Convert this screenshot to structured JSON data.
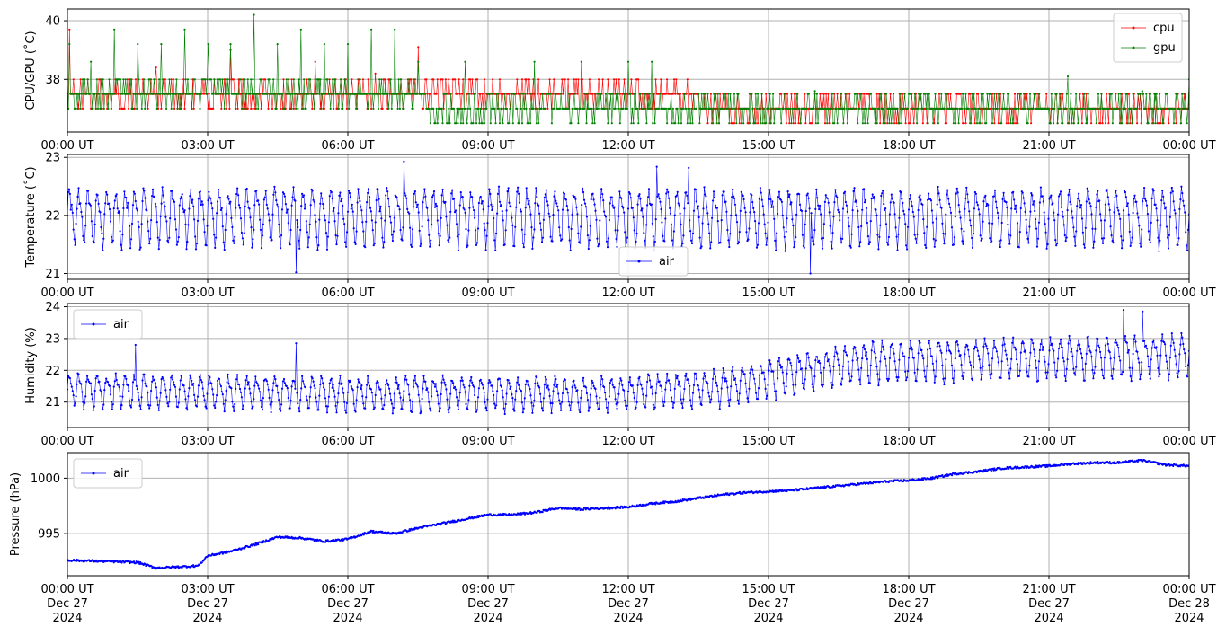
{
  "chart_data": [
    {
      "type": "line",
      "ylabel": "CPU/GPU (˚C)",
      "ylim": [
        36.2,
        40.4
      ],
      "yticks": [
        38,
        40
      ],
      "xlim_hours": [
        0,
        24
      ],
      "xtick_labels": [
        "00:00 UT",
        "03:00 UT",
        "06:00 UT",
        "09:00 UT",
        "12:00 UT",
        "15:00 UT",
        "18:00 UT",
        "21:00 UT",
        "00:00 UT"
      ],
      "grid": true,
      "legend": "top-right",
      "series": [
        {
          "name": "cpu",
          "color": "#ff0000",
          "levels": [
            36.5,
            37.0,
            37.5,
            38.0
          ],
          "segments": [
            {
              "from": 0,
              "to": 8,
              "base": 37.5
            },
            {
              "from": 8,
              "to": 13.5,
              "base": 37.5
            },
            {
              "from": 13.5,
              "to": 24,
              "base": 37.0
            }
          ],
          "spikes": [
            [
              0.05,
              39.7
            ],
            [
              1.9,
              38.4
            ],
            [
              3.5,
              39.0
            ],
            [
              5.3,
              38.6
            ],
            [
              6.6,
              38.2
            ],
            [
              7.5,
              39.1
            ]
          ]
        },
        {
          "name": "gpu",
          "color": "#008000",
          "levels": [
            36.5,
            37.0,
            37.5,
            38.0
          ],
          "segments": [
            {
              "from": 0,
              "to": 7.7,
              "base": 37.5
            },
            {
              "from": 7.7,
              "to": 24,
              "base": 37.0
            }
          ],
          "spikes": [
            [
              0.05,
              39.2
            ],
            [
              0.5,
              38.6
            ],
            [
              1.0,
              39.7
            ],
            [
              1.5,
              39.2
            ],
            [
              2.0,
              39.2
            ],
            [
              2.5,
              39.7
            ],
            [
              3.0,
              39.2
            ],
            [
              3.5,
              39.2
            ],
            [
              4.0,
              40.2
            ],
            [
              4.5,
              39.2
            ],
            [
              5.0,
              39.7
            ],
            [
              5.5,
              39.2
            ],
            [
              6.0,
              39.2
            ],
            [
              6.5,
              39.7
            ],
            [
              7.0,
              39.7
            ],
            [
              7.5,
              38.6
            ],
            [
              8.5,
              38.6
            ],
            [
              10.0,
              38.6
            ],
            [
              11.0,
              38.6
            ],
            [
              12.0,
              38.6
            ],
            [
              12.5,
              38.6
            ],
            [
              16.0,
              37.6
            ],
            [
              21.4,
              38.1
            ],
            [
              23.0,
              37.6
            ]
          ]
        }
      ]
    },
    {
      "type": "line",
      "ylabel": "Temperature (˚C)",
      "ylim": [
        20.9,
        23.05
      ],
      "yticks": [
        21,
        22,
        23
      ],
      "xlim_hours": [
        0,
        24
      ],
      "xtick_labels": [
        "00:00 UT",
        "03:00 UT",
        "06:00 UT",
        "09:00 UT",
        "12:00 UT",
        "15:00 UT",
        "18:00 UT",
        "21:00 UT",
        "00:00 UT"
      ],
      "grid": true,
      "legend": "bottom-center",
      "series": [
        {
          "name": "air",
          "color": "#0000ff",
          "mean": 22.0,
          "amplitude": 0.55,
          "period_hours": 0.2,
          "extremes": [
            [
              4.9,
              21.02
            ],
            [
              7.2,
              22.93
            ],
            [
              12.6,
              22.84
            ],
            [
              15.9,
              21.0
            ],
            [
              13.3,
              22.82
            ]
          ]
        }
      ]
    },
    {
      "type": "line",
      "ylabel": "Humidity (%)",
      "ylim": [
        20.2,
        24.1
      ],
      "yticks": [
        21,
        22,
        23,
        24
      ],
      "xlim_hours": [
        0,
        24
      ],
      "xtick_labels": [
        "00:00 UT",
        "03:00 UT",
        "06:00 UT",
        "09:00 UT",
        "12:00 UT",
        "15:00 UT",
        "18:00 UT",
        "21:00 UT",
        "00:00 UT"
      ],
      "grid": true,
      "legend": "top-left",
      "series": [
        {
          "name": "air",
          "color": "#0000ff",
          "mean_points": [
            [
              0,
              21.4
            ],
            [
              6,
              21.3
            ],
            [
              12,
              21.3
            ],
            [
              14,
              21.5
            ],
            [
              17,
              22.3
            ],
            [
              24,
              22.5
            ]
          ],
          "amplitude_points": [
            [
              0,
              0.6
            ],
            [
              13,
              0.6
            ],
            [
              16,
              0.7
            ],
            [
              24,
              0.75
            ]
          ],
          "period_hours": 0.2,
          "extremes": [
            [
              1.45,
              22.8
            ],
            [
              4.9,
              22.85
            ],
            [
              22.6,
              23.9
            ],
            [
              23.0,
              23.85
            ]
          ]
        }
      ]
    },
    {
      "type": "line",
      "ylabel": "Pressure (hPa)",
      "ylim": [
        991.2,
        1002.3
      ],
      "yticks": [
        995,
        1000
      ],
      "xlim_hours": [
        0,
        24
      ],
      "xtick_labels": [
        "00:00 UT\nDec 27\n2024",
        "03:00 UT\nDec 27\n2024",
        "06:00 UT\nDec 27\n2024",
        "09:00 UT\nDec 27\n2024",
        "12:00 UT\nDec 27\n2024",
        "15:00 UT\nDec 27\n2024",
        "18:00 UT\nDec 27\n2024",
        "21:00 UT\nDec 27\n2024",
        "00:00 UT\nDec 28\n2024"
      ],
      "grid": true,
      "legend": "top-left",
      "series": [
        {
          "name": "air",
          "color": "#0000ff",
          "points": [
            [
              0,
              992.6
            ],
            [
              0.8,
              992.5
            ],
            [
              1.5,
              992.4
            ],
            [
              1.9,
              991.9
            ],
            [
              2.4,
              992.0
            ],
            [
              2.8,
              992.1
            ],
            [
              3.0,
              993.0
            ],
            [
              3.5,
              993.4
            ],
            [
              4.0,
              994.0
            ],
            [
              4.5,
              994.7
            ],
            [
              5.0,
              994.6
            ],
            [
              5.5,
              994.3
            ],
            [
              6.0,
              994.5
            ],
            [
              6.5,
              995.2
            ],
            [
              7.0,
              995.0
            ],
            [
              7.5,
              995.5
            ],
            [
              8.0,
              995.9
            ],
            [
              8.5,
              996.3
            ],
            [
              9.0,
              996.7
            ],
            [
              9.5,
              996.7
            ],
            [
              10.0,
              996.9
            ],
            [
              10.5,
              997.3
            ],
            [
              11.0,
              997.2
            ],
            [
              11.5,
              997.3
            ],
            [
              12.0,
              997.4
            ],
            [
              12.5,
              997.7
            ],
            [
              13.0,
              997.9
            ],
            [
              13.5,
              998.2
            ],
            [
              14.0,
              998.5
            ],
            [
              14.5,
              998.7
            ],
            [
              15.0,
              998.8
            ],
            [
              15.5,
              998.9
            ],
            [
              16.0,
              999.1
            ],
            [
              16.5,
              999.3
            ],
            [
              17.0,
              999.5
            ],
            [
              17.5,
              999.7
            ],
            [
              18.0,
              999.8
            ],
            [
              18.5,
              1000.0
            ],
            [
              19.0,
              1000.4
            ],
            [
              19.5,
              1000.6
            ],
            [
              20.0,
              1000.9
            ],
            [
              20.5,
              1001.0
            ],
            [
              21.0,
              1001.1
            ],
            [
              21.5,
              1001.3
            ],
            [
              22.0,
              1001.4
            ],
            [
              22.5,
              1001.4
            ],
            [
              23.0,
              1001.6
            ],
            [
              23.5,
              1001.2
            ],
            [
              24.0,
              1001.1
            ]
          ]
        }
      ]
    }
  ]
}
